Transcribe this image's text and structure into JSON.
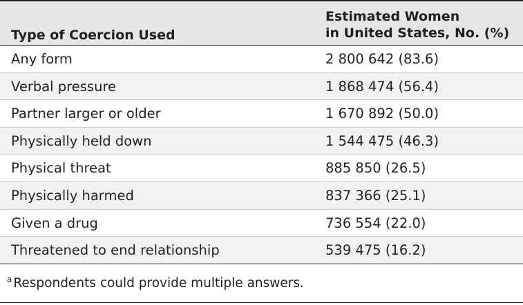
{
  "header": {
    "col1": "Type of Coercion Used",
    "col2_line1": "Estimated Women",
    "col2_line2": "in United States, No. (%)"
  },
  "rows": [
    {
      "type": "Any form",
      "value": "2 800 642 (83.6)"
    },
    {
      "type": "Verbal pressure",
      "value": "1 868 474 (56.4)"
    },
    {
      "type": "Partner larger or older",
      "value": "1 670 892 (50.0)"
    },
    {
      "type": "Physically held down",
      "value": "1 544 475 (46.3)"
    },
    {
      "type": "Physical threat",
      "value": "885 850 (26.5)"
    },
    {
      "type": "Physically harmed",
      "value": "837 366 (25.1)"
    },
    {
      "type": "Given a drug",
      "value": "736 554 (22.0)"
    },
    {
      "type": "Threatened to end relationship",
      "value": "539 475 (16.2)"
    }
  ],
  "footnote": {
    "marker": "a",
    "text": "Respondents could provide multiple answers."
  },
  "colors": {
    "header_bg": "#e6e7e8",
    "alt_row_bg": "#f1f2f2",
    "text": "#231f20"
  }
}
